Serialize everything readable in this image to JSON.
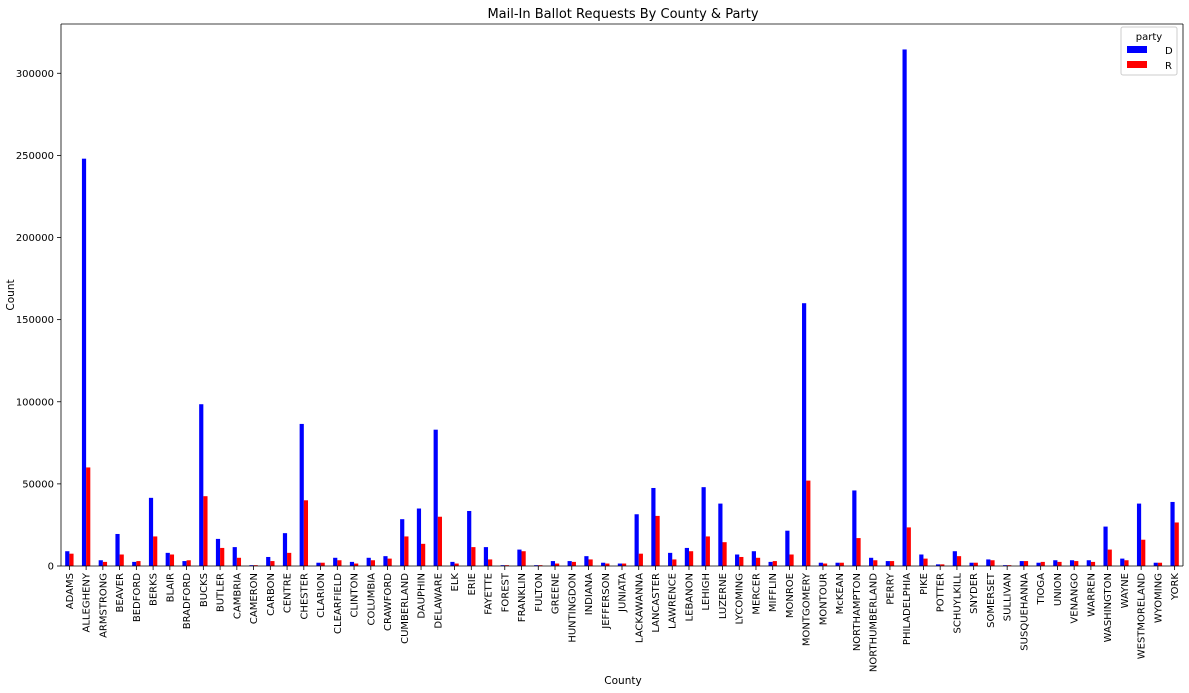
{
  "chart_data": {
    "type": "bar",
    "title": "Mail-In Ballot Requests By County & Party",
    "xlabel": "County",
    "ylabel": "Count",
    "ylim": [
      0,
      330000
    ],
    "yticks": [
      0,
      50000,
      100000,
      150000,
      200000,
      250000,
      300000
    ],
    "grid": false,
    "legend": {
      "title": "party",
      "placement": "top-right"
    },
    "categories": [
      "ADAMS",
      "ALLEGHENY",
      "ARMSTRONG",
      "BEAVER",
      "BEDFORD",
      "BERKS",
      "BLAIR",
      "BRADFORD",
      "BUCKS",
      "BUTLER",
      "CAMBRIA",
      "CAMERON",
      "CARBON",
      "CENTRE",
      "CHESTER",
      "CLARION",
      "CLEARFIELD",
      "CLINTON",
      "COLUMBIA",
      "CRAWFORD",
      "CUMBERLAND",
      "DAUPHIN",
      "DELAWARE",
      "ELK",
      "ERIE",
      "FAYETTE",
      "FOREST",
      "FRANKLIN",
      "FULTON",
      "GREENE",
      "HUNTINGDON",
      "INDIANA",
      "JEFFERSON",
      "JUNIATA",
      "LACKAWANNA",
      "LANCASTER",
      "LAWRENCE",
      "LEBANON",
      "LEHIGH",
      "LUZERNE",
      "LYCOMING",
      "MERCER",
      "MIFFLIN",
      "MONROE",
      "MONTGOMERY",
      "MONTOUR",
      "McKEAN",
      "NORTHAMPTON",
      "NORTHUMBERLAND",
      "PERRY",
      "PHILADELPHIA",
      "PIKE",
      "POTTER",
      "SCHUYLKILL",
      "SNYDER",
      "SOMERSET",
      "SULLIVAN",
      "SUSQUEHANNA",
      "TIOGA",
      "UNION",
      "VENANGO",
      "WARREN",
      "WASHINGTON",
      "WAYNE",
      "WESTMORELAND",
      "WYOMING",
      "YORK"
    ],
    "series": [
      {
        "name": "D",
        "color": "#0000ff",
        "values": [
          9000,
          248000,
          3500,
          19500,
          2500,
          41500,
          8000,
          3000,
          98500,
          16500,
          11500,
          500,
          5500,
          20000,
          86500,
          2000,
          5000,
          2500,
          5000,
          6000,
          28500,
          35000,
          83000,
          2500,
          33500,
          11500,
          500,
          10000,
          500,
          3000,
          3000,
          6000,
          2000,
          1500,
          31500,
          47500,
          8000,
          11000,
          48000,
          38000,
          7000,
          9000,
          2500,
          21500,
          160000,
          2000,
          2000,
          46000,
          5000,
          3000,
          314500,
          7000,
          1000,
          9000,
          2000,
          4000,
          500,
          3000,
          2000,
          3500,
          3500,
          3500,
          24000,
          4500,
          38000,
          2000,
          39000
        ]
      },
      {
        "name": "R",
        "color": "#ff0000",
        "values": [
          7500,
          60000,
          2500,
          7000,
          3000,
          18000,
          7000,
          3500,
          42500,
          11000,
          5000,
          500,
          3000,
          8000,
          40000,
          2000,
          3500,
          1500,
          3500,
          4500,
          18000,
          13500,
          30000,
          1500,
          11500,
          4000,
          500,
          9000,
          500,
          1500,
          2500,
          4000,
          1500,
          1500,
          7500,
          30500,
          4000,
          9000,
          18000,
          14500,
          5500,
          5000,
          3000,
          7000,
          52000,
          1500,
          2000,
          17000,
          3500,
          3000,
          23500,
          4500,
          1000,
          6000,
          2000,
          3500,
          500,
          3000,
          2500,
          2500,
          3000,
          2500,
          10000,
          3500,
          16000,
          2000,
          26500
        ]
      }
    ]
  }
}
